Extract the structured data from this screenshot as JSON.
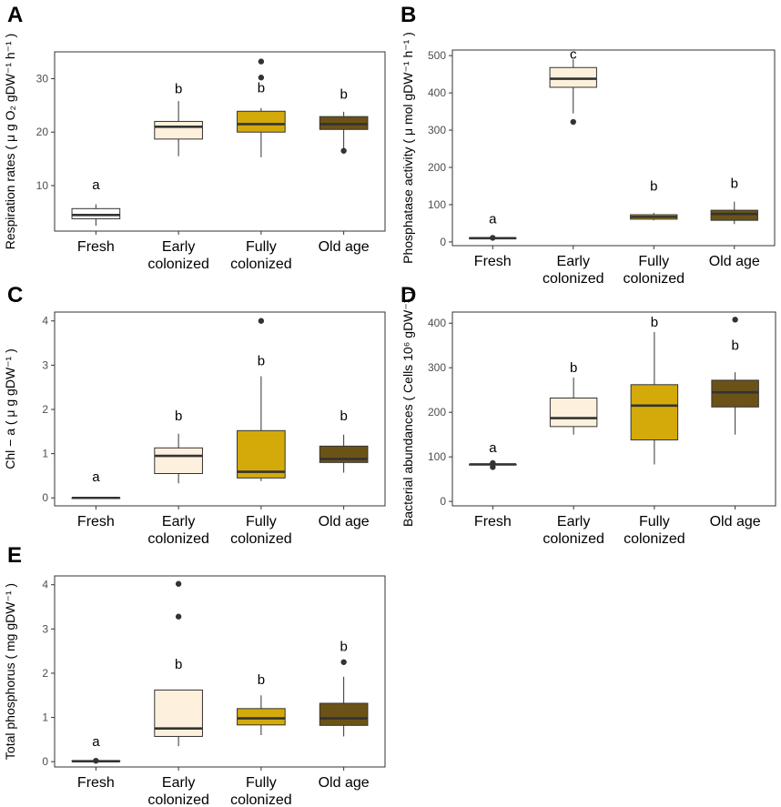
{
  "colors": {
    "Fresh": "#ffffff",
    "Early colonized": "#fdf0dc",
    "Fully colonized": "#d4aa0a",
    "Old age": "#6b5317",
    "outline": "#333333",
    "frame": "#333333"
  },
  "chart_data": [
    {
      "panel": "A",
      "type": "box",
      "ylabel": "Respiration rates ( μ g O₂ gDW⁻¹ h⁻¹ )",
      "ylim": [
        1.5,
        35
      ],
      "yticks": [
        10,
        20,
        30
      ],
      "categories": [
        "Fresh",
        "Early colonized",
        "Fully colonized",
        "Old age"
      ],
      "category_lines": [
        [
          "Fresh"
        ],
        [
          "Early",
          "colonized"
        ],
        [
          "Fully",
          "colonized"
        ],
        [
          "Old age"
        ]
      ],
      "boxes": [
        {
          "min": 2.5,
          "q1": 3.8,
          "median": 4.5,
          "q3": 5.7,
          "max": 6.5,
          "outliers": []
        },
        {
          "min": 15.5,
          "q1": 18.7,
          "median": 21.0,
          "q3": 22.0,
          "max": 25.8,
          "outliers": []
        },
        {
          "min": 15.3,
          "q1": 20.0,
          "median": 21.5,
          "q3": 23.9,
          "max": 24.5,
          "outliers": [
            30.2,
            33.2
          ]
        },
        {
          "min": 16.8,
          "q1": 20.5,
          "median": 21.5,
          "q3": 22.9,
          "max": 23.8,
          "outliers": [
            16.5
          ]
        }
      ],
      "letters": [
        "a",
        "b",
        "b",
        "b"
      ],
      "letter_y": [
        9.3,
        27.3,
        27.4,
        26.2
      ]
    },
    {
      "panel": "B",
      "type": "box",
      "ylabel": "Phosphatase activity ( μ mol gDW⁻¹ h⁻¹ )",
      "ylim": [
        -10,
        515
      ],
      "yticks": [
        0,
        100,
        200,
        300,
        400,
        500
      ],
      "categories": [
        "Fresh",
        "Early colonized",
        "Fully colonized",
        "Old age"
      ],
      "category_lines": [
        [
          "Fresh"
        ],
        [
          "Early",
          "colonized"
        ],
        [
          "Fully",
          "colonized"
        ],
        [
          "Old age"
        ]
      ],
      "boxes": [
        {
          "min": 8,
          "q1": 9,
          "median": 10,
          "q3": 11,
          "max": 12,
          "outliers": [
            11
          ]
        },
        {
          "min": 345,
          "q1": 415,
          "median": 438,
          "q3": 468,
          "max": 490,
          "outliers": [
            322
          ]
        },
        {
          "min": 58,
          "q1": 61,
          "median": 67,
          "q3": 73,
          "max": 78,
          "outliers": []
        },
        {
          "min": 48,
          "q1": 58,
          "median": 75,
          "q3": 85,
          "max": 108,
          "outliers": []
        }
      ],
      "letters": [
        "a",
        "c",
        "b",
        "b"
      ],
      "letter_y": [
        50,
        492,
        138,
        145
      ]
    },
    {
      "panel": "C",
      "type": "box",
      "ylabel": "Chl − a ( μ g gDW⁻¹ )",
      "ylim": [
        -0.18,
        4.2
      ],
      "yticks": [
        0,
        1,
        2,
        3,
        4
      ],
      "categories": [
        "Fresh",
        "Early colonized",
        "Fully colonized",
        "Old age"
      ],
      "category_lines": [
        [
          "Fresh"
        ],
        [
          "Early",
          "colonized"
        ],
        [
          "Fully",
          "colonized"
        ],
        [
          "Old age"
        ]
      ],
      "boxes": [
        {
          "min": 0,
          "q1": 0,
          "median": 0,
          "q3": 0,
          "max": 0,
          "outliers": []
        },
        {
          "min": 0.33,
          "q1": 0.55,
          "median": 0.95,
          "q3": 1.13,
          "max": 1.45,
          "outliers": []
        },
        {
          "min": 0.38,
          "q1": 0.45,
          "median": 0.59,
          "q3": 1.52,
          "max": 2.75,
          "outliers": [
            4.0
          ]
        },
        {
          "min": 0.57,
          "q1": 0.8,
          "median": 0.88,
          "q3": 1.17,
          "max": 1.43,
          "outliers": []
        }
      ],
      "letters": [
        "a",
        "b",
        "b",
        "b"
      ],
      "letter_y": [
        0.38,
        1.75,
        3.0,
        1.75
      ]
    },
    {
      "panel": "D",
      "type": "box",
      "ylabel": "Bacterial abundances ( Cells 10⁶ gDW⁻¹ )",
      "ylim": [
        -10,
        425
      ],
      "yticks": [
        0,
        100,
        200,
        300,
        400
      ],
      "categories": [
        "Fresh",
        "Early colonized",
        "Fully colonized",
        "Old age"
      ],
      "category_lines": [
        [
          "Fresh"
        ],
        [
          "Early",
          "colonized"
        ],
        [
          "Fully",
          "colonized"
        ],
        [
          "Old age"
        ]
      ],
      "boxes": [
        {
          "min": 78,
          "q1": 82,
          "median": 83,
          "q3": 83,
          "max": 85,
          "outliers": [
            77,
            86
          ]
        },
        {
          "min": 150,
          "q1": 168,
          "median": 187,
          "q3": 232,
          "max": 278,
          "outliers": []
        },
        {
          "min": 83,
          "q1": 138,
          "median": 215,
          "q3": 262,
          "max": 380,
          "outliers": []
        },
        {
          "min": 150,
          "q1": 212,
          "median": 245,
          "q3": 272,
          "max": 290,
          "outliers": [
            408
          ]
        }
      ],
      "letters": [
        "a",
        "b",
        "b",
        "b"
      ],
      "letter_y": [
        110,
        290,
        392,
        340
      ]
    },
    {
      "panel": "E",
      "type": "box",
      "ylabel": "Total phosphorus ( mg gDW⁻¹ )",
      "ylim": [
        -0.12,
        4.2
      ],
      "yticks": [
        0,
        1,
        2,
        3,
        4
      ],
      "categories": [
        "Fresh",
        "Early colonized",
        "Fully colonized",
        "Old age"
      ],
      "category_lines": [
        [
          "Fresh"
        ],
        [
          "Early",
          "colonized"
        ],
        [
          "Fully",
          "colonized"
        ],
        [
          "Old age"
        ]
      ],
      "boxes": [
        {
          "min": 0.01,
          "q1": 0.01,
          "median": 0.01,
          "q3": 0.02,
          "max": 0.02,
          "outliers": [
            0.02
          ]
        },
        {
          "min": 0.35,
          "q1": 0.57,
          "median": 0.75,
          "q3": 1.62,
          "max": 1.62,
          "outliers": [
            3.28,
            4.02
          ]
        },
        {
          "min": 0.6,
          "q1": 0.83,
          "median": 0.98,
          "q3": 1.2,
          "max": 1.5,
          "outliers": []
        },
        {
          "min": 0.57,
          "q1": 0.82,
          "median": 0.98,
          "q3": 1.32,
          "max": 1.92,
          "outliers": [
            2.25
          ]
        }
      ],
      "letters": [
        "a",
        "b",
        "b",
        "b"
      ],
      "letter_y": [
        0.35,
        2.1,
        1.75,
        2.5
      ]
    }
  ]
}
